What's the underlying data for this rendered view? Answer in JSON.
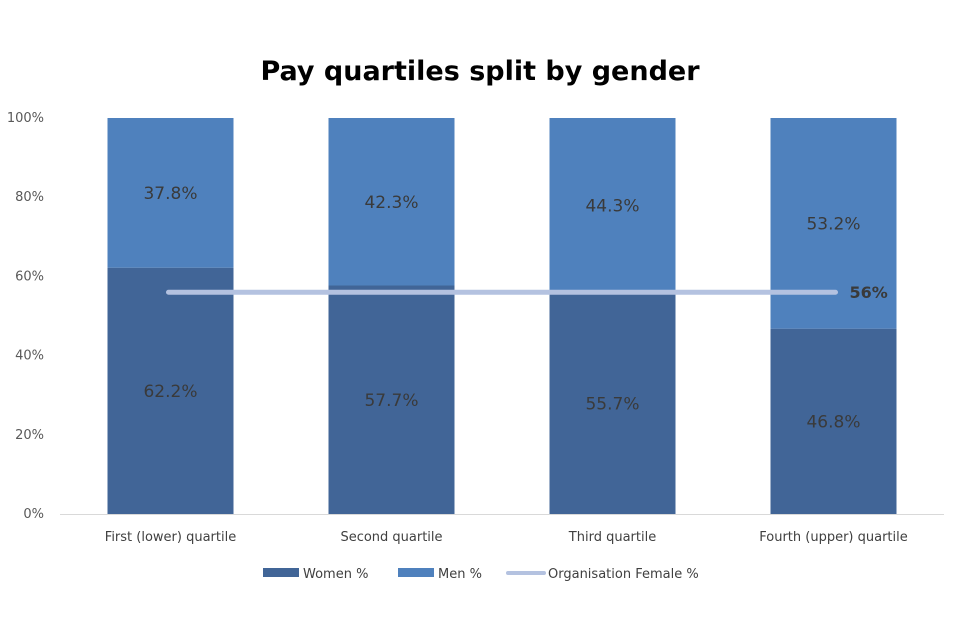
{
  "chart_data": {
    "type": "bar",
    "stacked": true,
    "title": "Pay quartiles split by gender",
    "categories": [
      "First (lower) quartile",
      "Second quartile",
      "Third quartile",
      "Fourth (upper) quartile"
    ],
    "series": [
      {
        "name": "Women %",
        "values": [
          62.2,
          57.7,
          55.7,
          46.8
        ],
        "labels": [
          "62.2%",
          "57.7%",
          "55.7%",
          "46.8%"
        ],
        "color": "#416597"
      },
      {
        "name": "Men %",
        "values": [
          37.8,
          42.3,
          44.3,
          53.2
        ],
        "labels": [
          "37.8%",
          "42.3%",
          "44.3%",
          "53.2%"
        ],
        "color": "#4f81bd"
      }
    ],
    "reference_line": {
      "name": "Organisation Female %",
      "value": 56,
      "label": "56%",
      "color": "#b4c2e0"
    },
    "yticks": [
      "0%",
      "20%",
      "40%",
      "60%",
      "80%",
      "100%"
    ],
    "ylim": [
      0,
      100
    ],
    "xlabel": "",
    "ylabel": "",
    "grid": false,
    "legend": "bottom"
  }
}
